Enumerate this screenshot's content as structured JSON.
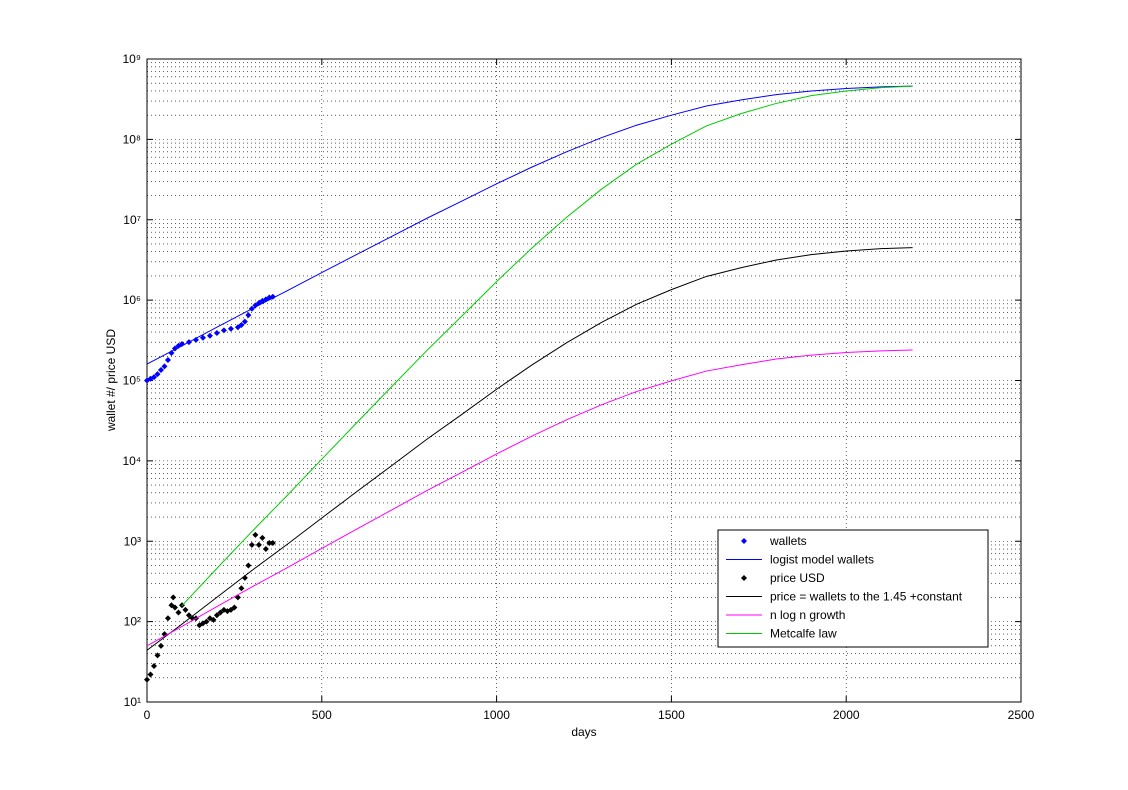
{
  "chart_data": {
    "type": "line",
    "xlabel": "days",
    "ylabel": "wallet #/ price USD",
    "xlim": [
      0,
      2500
    ],
    "xticks": [
      0,
      500,
      1000,
      1500,
      2000,
      2500
    ],
    "ylim": [
      10,
      1000000000
    ],
    "yscale": "log",
    "yticks": [
      {
        "value": 10,
        "label": "10¹"
      },
      {
        "value": 100,
        "label": "10²"
      },
      {
        "value": 1000,
        "label": "10³"
      },
      {
        "value": 10000,
        "label": "10⁴"
      },
      {
        "value": 100000,
        "label": "10⁵"
      },
      {
        "value": 1000000,
        "label": "10⁶"
      },
      {
        "value": 10000000,
        "label": "10⁷"
      },
      {
        "value": 100000000,
        "label": "10⁸"
      },
      {
        "value": 1000000000,
        "label": "10⁹"
      }
    ],
    "grid": true,
    "minor_grid": true,
    "legend": "east",
    "series": [
      {
        "name": "wallets",
        "color": "#0000ff",
        "style": "marker",
        "x": [
          0,
          10,
          20,
          30,
          40,
          50,
          60,
          70,
          80,
          90,
          100,
          120,
          140,
          160,
          180,
          200,
          220,
          240,
          260,
          270,
          280,
          290,
          300,
          310,
          320,
          330,
          340,
          350,
          360
        ],
        "values": [
          100000,
          105000,
          110000,
          120000,
          135000,
          150000,
          180000,
          220000,
          250000,
          270000,
          285000,
          300000,
          320000,
          340000,
          360000,
          390000,
          420000,
          440000,
          460000,
          490000,
          540000,
          650000,
          780000,
          860000,
          920000,
          980000,
          1020000,
          1080000,
          1100000
        ]
      },
      {
        "name": "logist model wallets",
        "color": "#0000ff",
        "style": "line",
        "x": [
          0,
          100,
          200,
          300,
          400,
          500,
          600,
          700,
          800,
          900,
          1000,
          1100,
          1200,
          1300,
          1400,
          1500,
          1600,
          1700,
          1800,
          1900,
          2000,
          2100,
          2190
        ],
        "values": [
          160000,
          270000,
          460000,
          780000,
          1300000,
          2200000,
          3700000,
          6200000,
          10400000,
          17000000,
          28000000,
          45000000,
          70000000,
          105000000,
          150000000,
          200000000,
          260000000,
          310000000,
          360000000,
          400000000,
          430000000,
          450000000,
          460000000
        ]
      },
      {
        "name": "price USD",
        "color": "#000000",
        "style": "marker",
        "x": [
          0,
          10,
          20,
          30,
          40,
          50,
          60,
          70,
          75,
          80,
          90,
          100,
          110,
          120,
          130,
          140,
          150,
          160,
          170,
          180,
          190,
          200,
          210,
          220,
          230,
          240,
          250,
          260,
          270,
          280,
          290,
          300,
          310,
          320,
          330,
          340,
          350,
          360
        ],
        "values": [
          19,
          22,
          28,
          38,
          50,
          70,
          110,
          160,
          200,
          150,
          130,
          160,
          140,
          120,
          110,
          110,
          90,
          95,
          100,
          110,
          105,
          120,
          130,
          140,
          135,
          140,
          150,
          200,
          260,
          350,
          500,
          900,
          1200,
          900,
          1100,
          800,
          950,
          950
        ]
      },
      {
        "name": "price = wallets to the 1.45 +constant",
        "color": "#000000",
        "style": "line",
        "x": [
          0,
          100,
          200,
          300,
          400,
          500,
          600,
          700,
          800,
          900,
          1000,
          1100,
          1200,
          1300,
          1400,
          1500,
          1600,
          1700,
          1800,
          1900,
          2000,
          2100,
          2190
        ],
        "values": [
          44,
          93,
          201,
          433,
          908,
          1945,
          4140,
          8730,
          18500,
          37700,
          77800,
          155000,
          294000,
          528000,
          887000,
          1350000,
          1970000,
          2540000,
          3160000,
          3680000,
          4080000,
          4370000,
          4500000
        ]
      },
      {
        "name": "n log n growth",
        "color": "#ff00ff",
        "style": "line",
        "x": [
          0,
          100,
          200,
          300,
          400,
          500,
          600,
          700,
          800,
          900,
          1000,
          1100,
          1200,
          1300,
          1400,
          1500,
          1600,
          1700,
          1800,
          1900,
          2000,
          2100,
          2190
        ],
        "values": [
          50,
          87,
          154,
          270,
          466,
          815,
          1420,
          2450,
          4260,
          7180,
          12200,
          20200,
          32400,
          49800,
          72800,
          98900,
          131000,
          157000,
          185000,
          207000,
          223000,
          234000,
          240000
        ]
      },
      {
        "name": "Metcalfe law",
        "color": "#00cc00",
        "style": "line",
        "x": [
          100,
          200,
          300,
          400,
          500,
          600,
          700,
          800,
          900,
          1000,
          1100,
          1200,
          1300,
          1400,
          1500,
          1600,
          1700,
          1800,
          1900,
          2000,
          2100,
          2190
        ],
        "values": [
          158,
          460,
          1320,
          3670,
          10500,
          29800,
          84000,
          235000,
          630000,
          1700000,
          4400000,
          10700000,
          24000000,
          49000000,
          87000000,
          147000000,
          210000000,
          280000000,
          350000000,
          400000000,
          440000000,
          460000000
        ]
      }
    ]
  }
}
